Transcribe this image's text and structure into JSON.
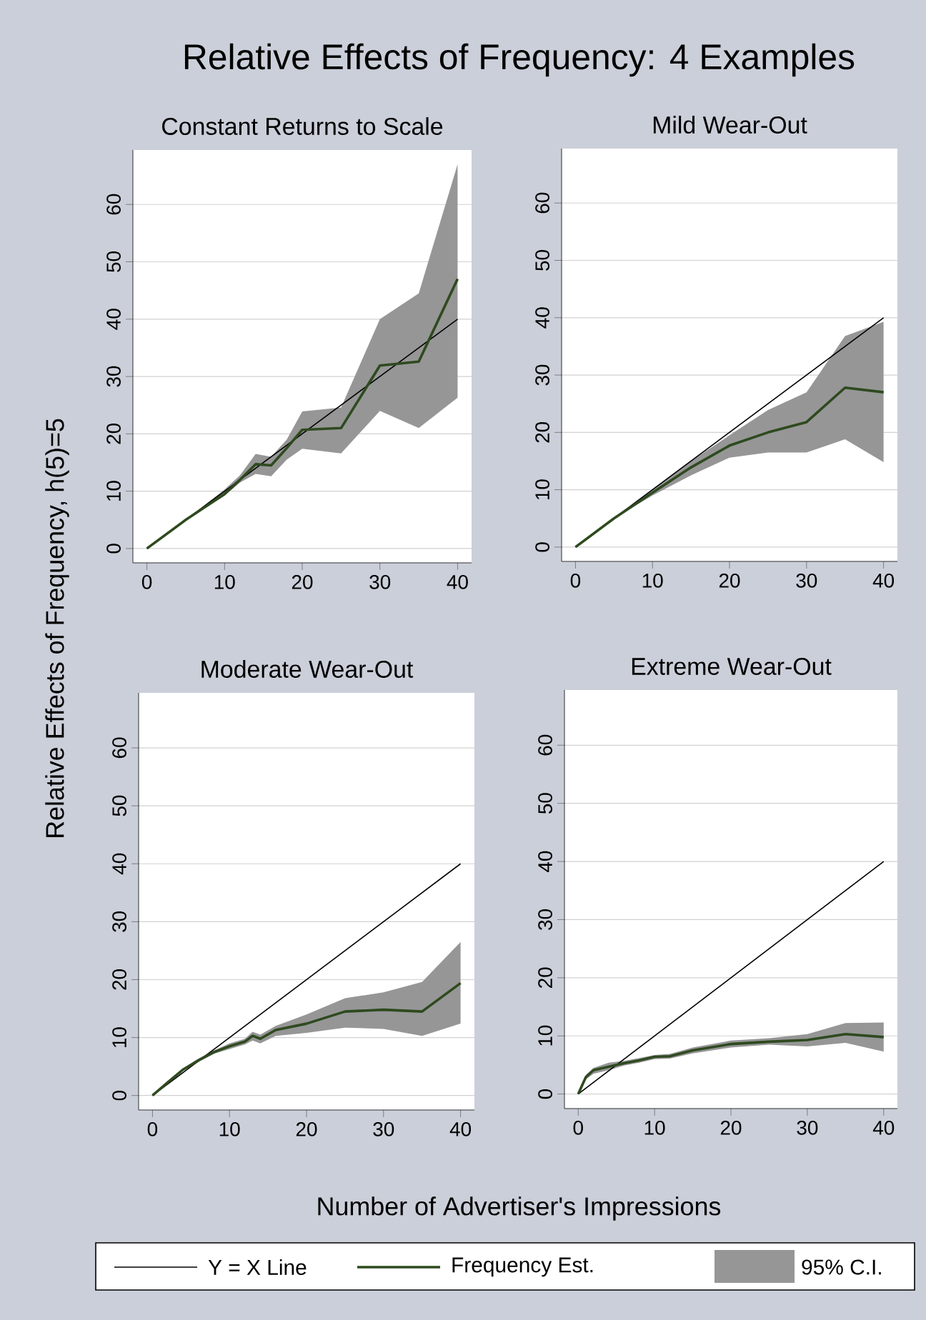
{
  "chart_data": [
    {
      "type": "line",
      "title": "Relative Effects of Frequency: 4 Examples",
      "subtitle": "Constant Returns to Scale",
      "ylabel": "Relative Effects of Frequency, h(5)=5",
      "xlim": [
        -1.8,
        41.8
      ],
      "ylim": [
        -2.5,
        69.5
      ],
      "xticks": [
        0,
        10,
        20,
        30,
        40
      ],
      "yticks": [
        0,
        10,
        20,
        30,
        40,
        50,
        60
      ],
      "grid": "y",
      "legend": "bottom",
      "annotations": [
        "95% C.I."
      ],
      "series": [
        {
          "name": "Y = X Line",
          "color": "#000000",
          "x": [
            0,
            40
          ],
          "values": [
            0,
            40
          ]
        },
        {
          "name": "Frequency Est.",
          "color": "#2e4a1f",
          "x": [
            0,
            5,
            10,
            12,
            14,
            16,
            18,
            20,
            25,
            30,
            35,
            40
          ],
          "values": [
            0,
            5,
            9.5,
            12,
            14.7,
            14.5,
            17.5,
            20.7,
            21,
            31.9,
            32.6,
            47
          ],
          "lower": [
            0,
            5,
            9.2,
            11.5,
            13,
            12.6,
            15.5,
            17.4,
            16.6,
            24,
            21,
            26.3
          ],
          "upper": [
            0,
            5,
            10.3,
            12.8,
            16.5,
            16,
            19,
            23.9,
            24.6,
            40,
            44.5,
            67
          ]
        }
      ]
    },
    {
      "type": "line",
      "subtitle": "Mild Wear-Out",
      "xlim": [
        -1.8,
        41.8
      ],
      "ylim": [
        -2.5,
        69.5
      ],
      "xticks": [
        0,
        10,
        20,
        30,
        40
      ],
      "yticks": [
        0,
        10,
        20,
        30,
        40,
        50,
        60
      ],
      "grid": "y",
      "series": [
        {
          "color": "#000000",
          "x": [
            0,
            40
          ],
          "values": [
            0,
            40
          ]
        },
        {
          "color": "#2e4a1f",
          "x": [
            0,
            5,
            10,
            15,
            20,
            25,
            30,
            35,
            40
          ],
          "values": [
            0,
            5,
            9.5,
            13.9,
            17.7,
            20,
            21.8,
            27.8,
            27
          ],
          "lower": [
            0,
            5,
            9,
            12.5,
            15.6,
            16.5,
            16.5,
            18.8,
            14.8
          ],
          "upper": [
            0,
            5,
            10,
            15,
            19.5,
            23.9,
            27,
            36.8,
            39.3
          ]
        }
      ]
    },
    {
      "type": "line",
      "subtitle": "Moderate Wear-Out",
      "xlabel": "Number of Advertiser's Impressions",
      "xlim": [
        -1.8,
        41.8
      ],
      "ylim": [
        -2.5,
        69.5
      ],
      "xticks": [
        0,
        10,
        20,
        30,
        40
      ],
      "yticks": [
        0,
        10,
        20,
        30,
        40,
        50,
        60
      ],
      "grid": "y",
      "series": [
        {
          "color": "#000000",
          "x": [
            0,
            40
          ],
          "values": [
            0,
            40
          ]
        },
        {
          "color": "#2e4a1f",
          "x": [
            0,
            2,
            4,
            6,
            8,
            10,
            12,
            13,
            14,
            16,
            20,
            25,
            30,
            35,
            40
          ],
          "values": [
            0,
            2.3,
            4.5,
            6.1,
            7.5,
            8.5,
            9.3,
            10.3,
            9.8,
            11.3,
            12.4,
            14.5,
            14.8,
            14.5,
            19.4
          ],
          "lower": [
            0,
            2.1,
            4.3,
            5.8,
            7.2,
            8,
            8.8,
            9.5,
            9,
            10.3,
            10.8,
            11.7,
            11.5,
            10.3,
            12.4
          ],
          "upper": [
            0,
            2.5,
            4.7,
            6.4,
            7.8,
            9,
            9.8,
            11,
            10.5,
            12,
            14,
            16.8,
            17.8,
            19.6,
            26.5
          ]
        }
      ]
    },
    {
      "type": "line",
      "subtitle": "Extreme Wear-Out",
      "xlim": [
        -1.8,
        41.8
      ],
      "ylim": [
        -2.5,
        69.5
      ],
      "xticks": [
        0,
        10,
        20,
        30,
        40
      ],
      "yticks": [
        0,
        10,
        20,
        30,
        40,
        50,
        60
      ],
      "grid": "y",
      "series": [
        {
          "color": "#000000",
          "x": [
            0,
            40
          ],
          "values": [
            0,
            40
          ]
        },
        {
          "color": "#2e4a1f",
          "x": [
            0,
            1,
            2,
            4,
            6,
            8,
            10,
            12,
            15,
            20,
            25,
            30,
            35,
            40
          ],
          "values": [
            0,
            2.9,
            4.1,
            4.7,
            5.3,
            5.8,
            6.4,
            6.5,
            7.5,
            8.6,
            9,
            9.3,
            10.3,
            9.8
          ],
          "lower": [
            0,
            2.5,
            3.5,
            4.1,
            4.9,
            5.4,
            6,
            6.1,
            7,
            8,
            8.5,
            8.2,
            8.8,
            7.3
          ],
          "upper": [
            0,
            3.3,
            4.5,
            5.4,
            5.7,
            6.2,
            6.7,
            6.9,
            8,
            9.2,
            9.6,
            10.3,
            12.2,
            12.3
          ]
        }
      ]
    }
  ]
}
